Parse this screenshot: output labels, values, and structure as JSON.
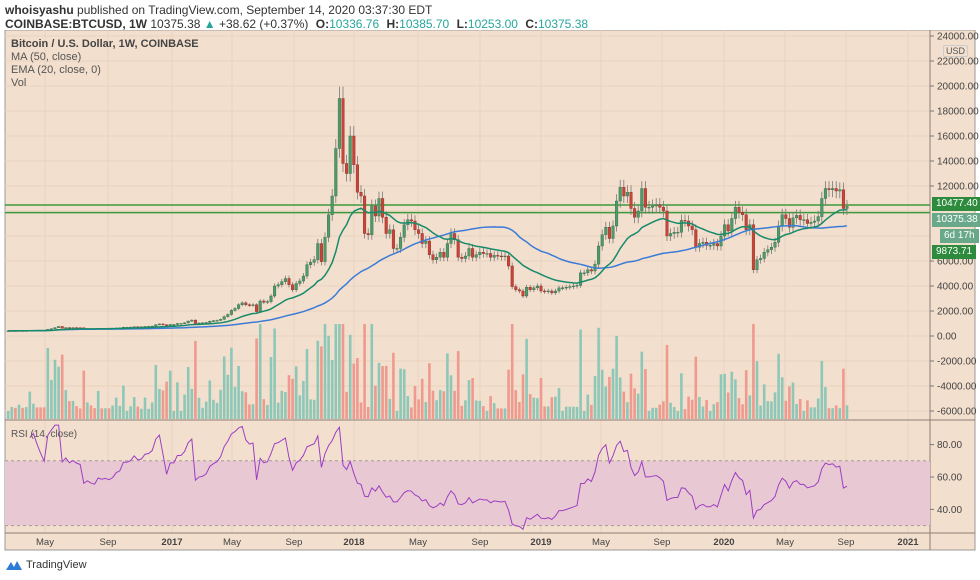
{
  "header": {
    "author": "whoisyashu",
    "published_text": "published on TradingView.com, September 14, 2020 03:37:30 EDT",
    "symbol": "COINBASE:BTCUSD, 1W",
    "last": "10375.38",
    "change": "+38.62 (+0.37%)",
    "open_label": "O:",
    "open": "10336.76",
    "high_label": "H:",
    "high": "10385.70",
    "low_label": "L:",
    "low": "10253.00",
    "close_label": "C:",
    "close": "10375.38"
  },
  "legend": {
    "title": "Bitcoin / U.S. Dollar, 1W, COINBASE",
    "ma": "MA (50, close)",
    "ema": "EMA (20, close, 0)",
    "vol": "Vol",
    "rsi": "RSI (14, close)"
  },
  "price_scale": {
    "currency": "USD",
    "ticks": [
      "24000.00",
      "22000.00",
      "20000.00",
      "18000.00",
      "16000.00",
      "14000.00",
      "12000.00",
      "8000.00",
      "6000.00",
      "4000.00",
      "2000.00",
      "0.00",
      "-2000.00",
      "-4000.00",
      "-6000.00"
    ],
    "labels": [
      {
        "text": "10477.40",
        "color": "#2e8b3e"
      },
      {
        "text": "10375.38",
        "color": "#6aa88a"
      },
      {
        "text": "6d 17h",
        "color": "#6aa88a"
      },
      {
        "text": "9873.71",
        "color": "#2e8b3e"
      }
    ],
    "hlines": [
      10477.4,
      9873.71
    ]
  },
  "rsi_scale": {
    "ticks": [
      "80.00",
      "60.00",
      "40.00"
    ],
    "band": [
      30,
      70
    ]
  },
  "time_axis": [
    "May",
    "Sep",
    "2017",
    "May",
    "Sep",
    "2018",
    "May",
    "Sep",
    "2019",
    "May",
    "Sep",
    "2020",
    "May",
    "Sep",
    "2021"
  ],
  "colors": {
    "background": "#f3dfcd",
    "up": "#4f9a6a",
    "down": "#c8453a",
    "ema": "#178a6c",
    "ma": "#3b7bd8",
    "rsi": "#9c3fc4",
    "rsi_band": "#e8c8d2",
    "vol_up": "#8cc7b8",
    "vol_down": "#ef9a8e",
    "hline": "#3c9a3c"
  },
  "footer": {
    "brand": "TradingView"
  },
  "chart_data": {
    "type": "candlestick",
    "interval": "1W",
    "first_week": "2016-03",
    "last_week": "2020-09-14",
    "closes": [
      415,
      420,
      416,
      424,
      420,
      425,
      450,
      460,
      455,
      450,
      445,
      530,
      580,
      670,
      760,
      630,
      670,
      650,
      670,
      660,
      655,
      575,
      590,
      580,
      575,
      610,
      605,
      610,
      605,
      615,
      640,
      650,
      700,
      700,
      710,
      740,
      730,
      735,
      765,
      770,
      790,
      900,
      960,
      900,
      820,
      920,
      920,
      1000,
      1000,
      1050,
      1190,
      1270,
      1000,
      1040,
      1050,
      1080,
      1180,
      1220,
      1250,
      1330,
      1550,
      1720,
      2050,
      2200,
      2500,
      2650,
      2500,
      2450,
      2500,
      1950,
      2800,
      2700,
      2750,
      3200,
      4000,
      4100,
      4350,
      4600,
      4100,
      3700,
      4200,
      4400,
      4800,
      5700,
      5900,
      6100,
      7400,
      5950,
      7900,
      9700,
      11200,
      15000,
      19000,
      13800,
      13000,
      16000,
      13700,
      11500,
      11200,
      8200,
      8100,
      10400,
      9600,
      11000,
      9500,
      8200,
      8500,
      7000,
      7000,
      7900,
      8900,
      9300,
      9200,
      8500,
      8200,
      7400,
      7600,
      6500,
      6100,
      6300,
      6700,
      6300,
      7400,
      8200,
      7700,
      6300,
      6200,
      6400,
      7000,
      6300,
      6500,
      6700,
      6600,
      6600,
      6300,
      6450,
      6400,
      6350,
      6400,
      5600,
      3950,
      3700,
      3600,
      3200,
      3900,
      3700,
      3850,
      4000,
      3600,
      3550,
      3600,
      3450,
      3600,
      3850,
      3850,
      3900,
      3950,
      4000,
      4050,
      5050,
      5050,
      5300,
      5200,
      5750,
      7200,
      8100,
      8700,
      7800,
      8800,
      10800,
      11900,
      11200,
      11500,
      10200,
      9500,
      10000,
      11800,
      10300,
      10300,
      10400,
      10500,
      10300,
      10000,
      8000,
      8200,
      8300,
      8300,
      9250,
      9200,
      8800,
      8500,
      7100,
      7400,
      7500,
      7250,
      7250,
      7400,
      7200,
      8000,
      8900,
      8400,
      9400,
      10300,
      9900,
      9700,
      8500,
      8900,
      5300,
      6100,
      6200,
      6700,
      6900,
      7100,
      7500,
      8800,
      9700,
      9400,
      8700,
      9450,
      9650,
      9300,
      9300,
      9000,
      9100,
      9200,
      9550,
      11000,
      11800,
      11700,
      11800,
      11600,
      11700,
      10200,
      10375.38
    ],
    "indicators": [
      "MA (50, close)",
      "EMA (20, close, 0)",
      "Vol",
      "RSI (14, close)"
    ],
    "price_range": [
      -6600,
      24000
    ],
    "rsi_range": [
      20,
      90
    ]
  }
}
